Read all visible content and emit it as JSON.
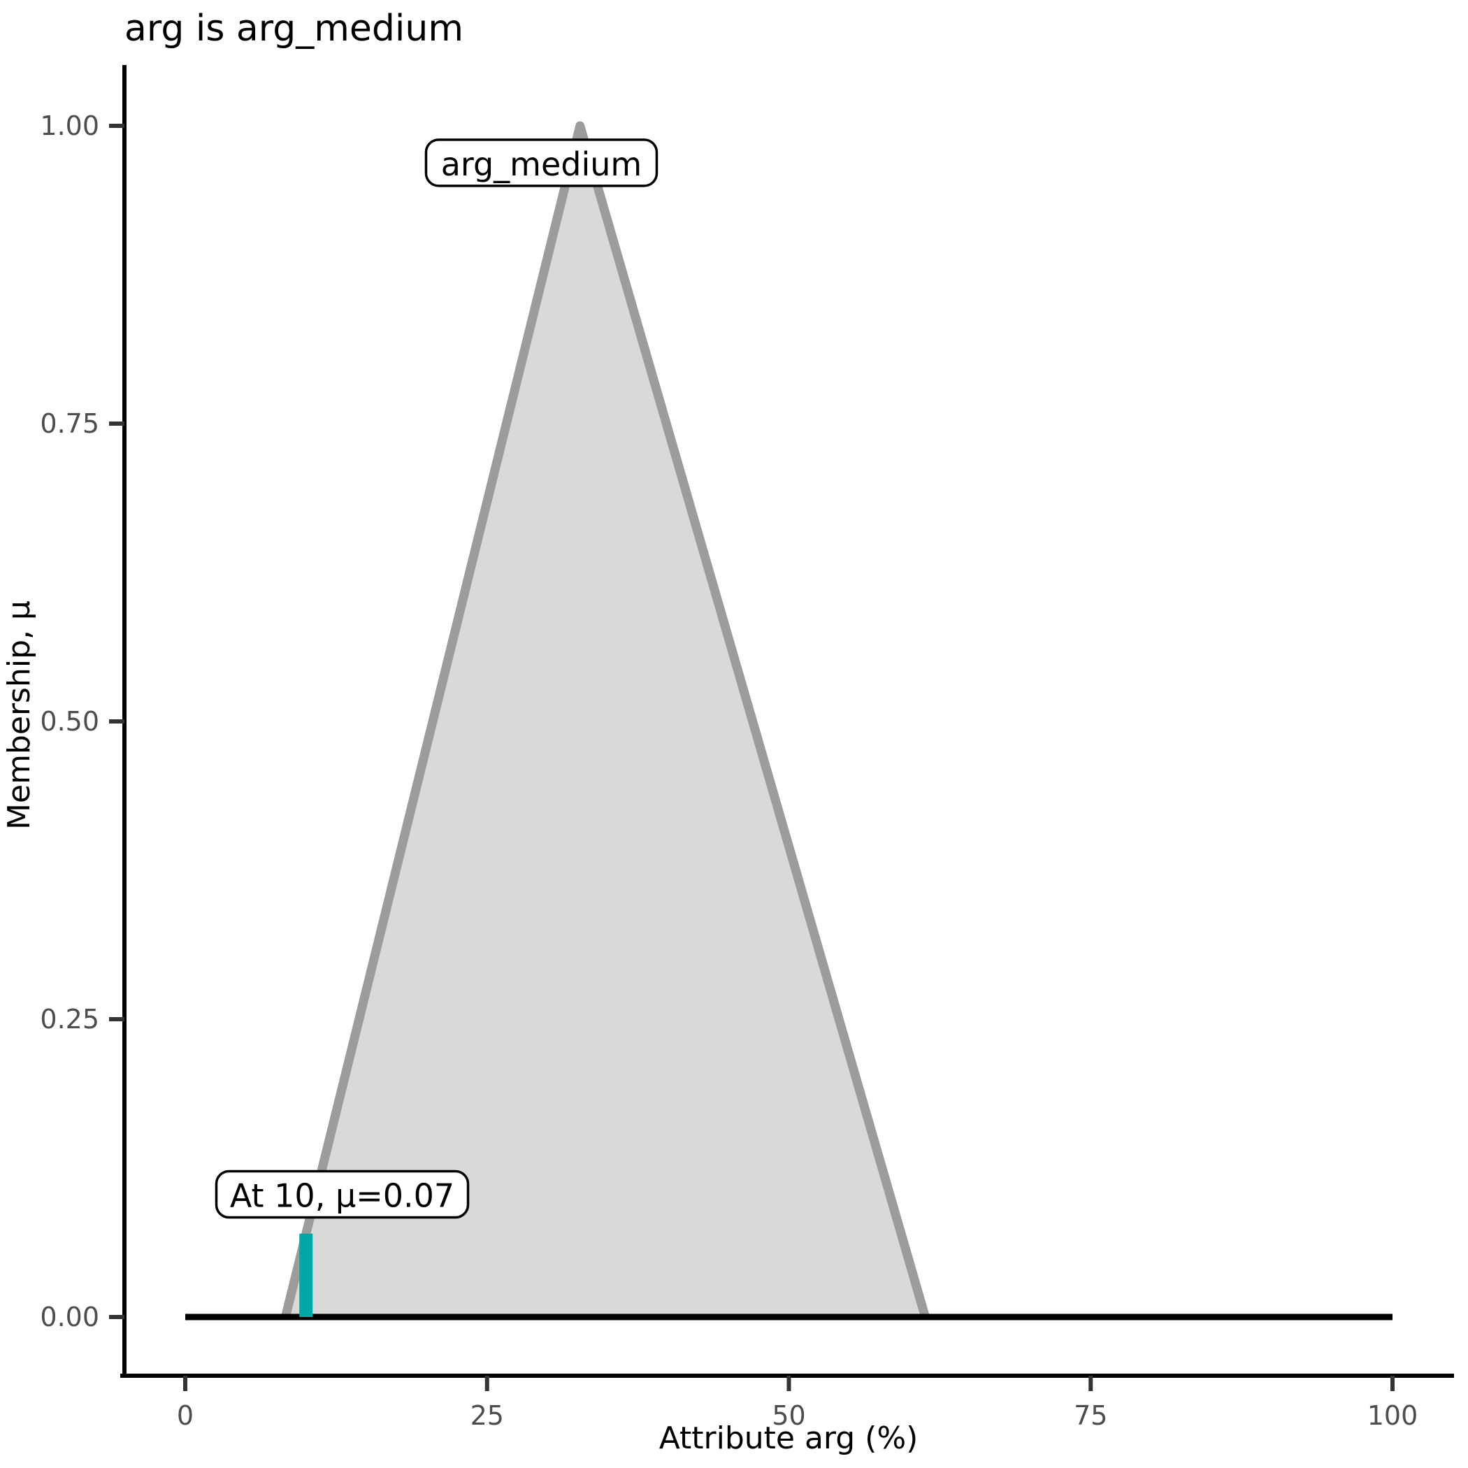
{
  "chart_data": {
    "type": "area",
    "title": "arg is arg_medium",
    "xlabel": "Attribute arg (%)",
    "ylabel": "Membership, μ",
    "xlim": [
      0,
      100
    ],
    "ylim": [
      0,
      1
    ],
    "grid": false,
    "legend": "none",
    "x_ticks": [
      {
        "v": 0,
        "label": "0"
      },
      {
        "v": 25,
        "label": "25"
      },
      {
        "v": 50,
        "label": "50"
      },
      {
        "v": 75,
        "label": "75"
      },
      {
        "v": 100,
        "label": "100"
      }
    ],
    "y_ticks": [
      {
        "v": 0.0,
        "label": "0.00"
      },
      {
        "v": 0.25,
        "label": "0.25"
      },
      {
        "v": 0.5,
        "label": "0.50"
      },
      {
        "v": 0.75,
        "label": "0.75"
      },
      {
        "v": 1.0,
        "label": "1.00"
      }
    ],
    "series": [
      {
        "name": "arg_medium",
        "kind": "area",
        "points": [
          [
            8.3,
            0
          ],
          [
            32.7,
            1
          ],
          [
            61.3,
            0
          ]
        ],
        "fill": "#D9D9D9",
        "stroke": "#9C9C9C"
      },
      {
        "name": "universe-baseline",
        "kind": "line",
        "points": [
          [
            0,
            0
          ],
          [
            100,
            0
          ]
        ],
        "stroke": "#000000"
      }
    ],
    "set_label": {
      "text": "arg_medium",
      "anchor": {
        "x": 29.5,
        "mu": 0.969
      }
    },
    "indicator": {
      "x": 10,
      "mu": 0.07,
      "label": "At 10, μ=0.07",
      "color": "#00A9A4",
      "label_anchor": {
        "x": 13,
        "mu": 0.103
      }
    },
    "colors": {
      "axis_text": "#4D4D4D",
      "axis_line": "#000000",
      "title": "#000000"
    }
  }
}
